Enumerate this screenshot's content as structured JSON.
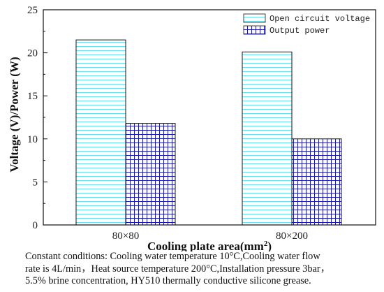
{
  "chart_data": {
    "type": "bar",
    "title": "",
    "xlabel": "Cooling plate area(mm²)",
    "ylabel": "Voltage (V)/Power (W)",
    "categories": [
      "80×80",
      "80×200"
    ],
    "ylim": [
      0,
      25
    ],
    "yticks": [
      0,
      5,
      10,
      15,
      20,
      25
    ],
    "grid": false,
    "legend_position": "top-right",
    "series": [
      {
        "name": "Open circuit voltage",
        "values": [
          21.5,
          20.1
        ],
        "color": "#66e0f0",
        "hatch": "horizontal-lines"
      },
      {
        "name": "Output power",
        "values": [
          11.8,
          10.0
        ],
        "color": "#1a1ab3",
        "hatch": "grid"
      }
    ]
  },
  "caption": {
    "lines": [
      "Constant conditions: Cooling water temperature 10°C,Cooling water flow",
      "rate is 4L/min，Heat source temperature 200°C,Installation pressure 3bar，",
      "5.5% brine concentration, HY510 thermally conductive silicone grease."
    ]
  }
}
